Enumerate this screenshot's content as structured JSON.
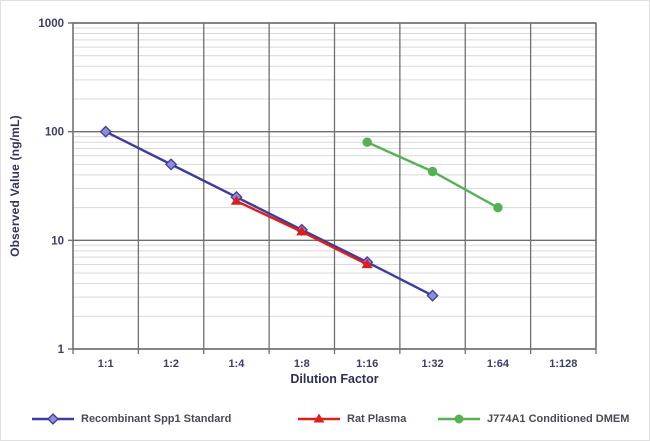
{
  "figure": {
    "background": "#ffffff"
  },
  "chart_data": {
    "type": "line",
    "x_type": "category",
    "title": "",
    "xlabel": "Dilution Factor",
    "ylabel": "Observed Value (ng/mL)",
    "categories": [
      "1:1",
      "1:2",
      "1:4",
      "1:8",
      "1:16",
      "1:32",
      "1:64",
      "1:128"
    ],
    "y_scale": "log",
    "ylim": [
      1,
      1000
    ],
    "y_ticks": [
      1,
      10,
      100,
      1000
    ],
    "y_tick_labels": [
      "1",
      "10",
      "100",
      "1000"
    ],
    "grid": {
      "major": true,
      "minor_horizontal": true,
      "vertical": true
    },
    "legend_position": "bottom",
    "series": [
      {
        "name": "Recombinant Spp1 Standard",
        "color": "#3c3c9e",
        "marker": "diamond",
        "marker_fill": "#8d8dd6",
        "points": [
          {
            "x": "1:1",
            "y": 100
          },
          {
            "x": "1:2",
            "y": 50
          },
          {
            "x": "1:4",
            "y": 25
          },
          {
            "x": "1:8",
            "y": 12.5
          },
          {
            "x": "1:16",
            "y": 6.3
          },
          {
            "x": "1:32",
            "y": 3.1
          }
        ]
      },
      {
        "name": "Rat Plasma",
        "color": "#e01d1d",
        "marker": "triangle",
        "marker_fill": "#e01d1d",
        "points": [
          {
            "x": "1:4",
            "y": 23
          },
          {
            "x": "1:8",
            "y": 12
          },
          {
            "x": "1:16",
            "y": 6
          }
        ]
      },
      {
        "name": "J774A1 Conditioned DMEM",
        "color": "#54b254",
        "marker": "circle",
        "marker_fill": "#54b254",
        "points": [
          {
            "x": "1:16",
            "y": 80
          },
          {
            "x": "1:32",
            "y": 43
          },
          {
            "x": "1:64",
            "y": 20
          }
        ]
      }
    ],
    "colors": {
      "axis_text": "#3d3d66",
      "grid_major": "#6f6f6f",
      "grid_minor": "#d9d9d9",
      "plot_border": "#6f6f6f",
      "legend_text": "#4a4a58"
    }
  }
}
